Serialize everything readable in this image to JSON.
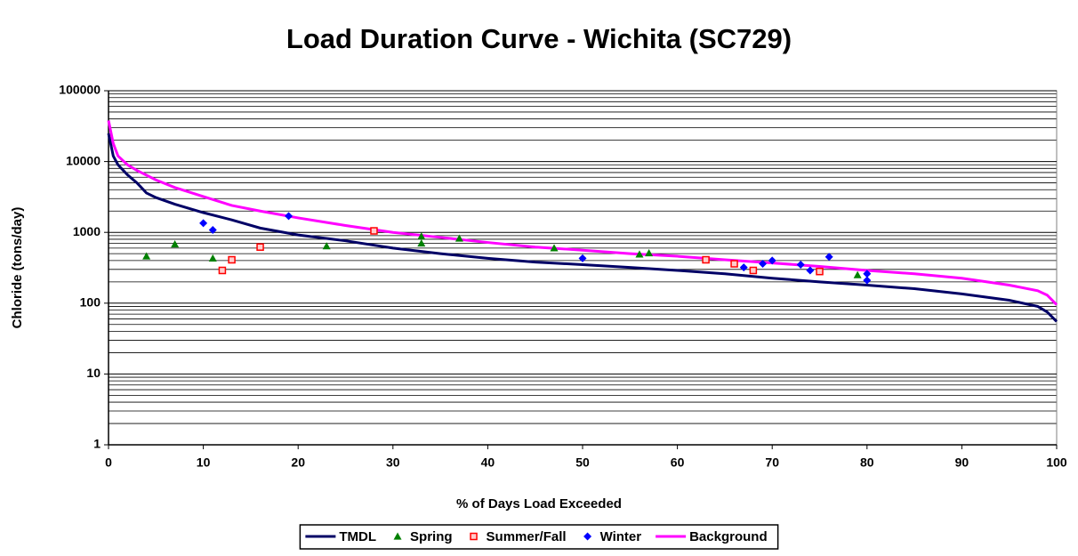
{
  "chart_data": {
    "type": "line",
    "title": "Load Duration Curve - Wichita (SC729)",
    "x_label": "% of Days Load Exceeded",
    "y_label": "Chloride (tons/day)",
    "xlim": [
      0,
      100
    ],
    "xticks": [
      0,
      10,
      20,
      30,
      40,
      50,
      60,
      70,
      80,
      90,
      100
    ],
    "ylim": [
      1,
      100000
    ],
    "yticks": [
      1,
      10,
      100,
      1000,
      10000,
      100000
    ],
    "y_scale": "log",
    "grid": true,
    "minor_grid": true,
    "legend": "bottom",
    "series": [
      {
        "name": "TMDL",
        "type": "line",
        "color": "#000066",
        "x": [
          0,
          0.5,
          1,
          2,
          3,
          4,
          5,
          7,
          10,
          13,
          16,
          20,
          25,
          30,
          35,
          40,
          45,
          50,
          55,
          60,
          65,
          70,
          75,
          80,
          85,
          90,
          95,
          98,
          99,
          100
        ],
        "values": [
          25000,
          12000,
          9000,
          6500,
          5000,
          3600,
          3100,
          2500,
          1900,
          1500,
          1150,
          920,
          760,
          600,
          500,
          430,
          380,
          350,
          320,
          290,
          260,
          225,
          200,
          180,
          160,
          135,
          110,
          90,
          75,
          55
        ]
      },
      {
        "name": "Spring",
        "type": "scatter",
        "marker": "triangle",
        "color": "#008000",
        "x": [
          4,
          7,
          11,
          23,
          33,
          33,
          37,
          47,
          56,
          57,
          79
        ],
        "values": [
          460,
          680,
          430,
          640,
          880,
          700,
          820,
          600,
          490,
          510,
          250
        ]
      },
      {
        "name": "Summer/Fall",
        "type": "scatter",
        "marker": "square",
        "color": "#ff0000",
        "x": [
          12,
          13,
          16,
          28,
          63,
          66,
          68,
          75
        ],
        "values": [
          290,
          410,
          620,
          1050,
          410,
          360,
          290,
          280
        ]
      },
      {
        "name": "Winter",
        "type": "scatter",
        "marker": "diamond",
        "color": "#0000ff",
        "x": [
          10,
          11,
          19,
          50,
          67,
          69,
          70,
          73,
          74,
          76,
          80,
          80
        ],
        "values": [
          1350,
          1080,
          1700,
          430,
          320,
          360,
          400,
          350,
          290,
          450,
          260,
          210
        ]
      },
      {
        "name": "Background",
        "type": "line",
        "color": "#ff00ff",
        "x": [
          0,
          0.5,
          1,
          2,
          3,
          5,
          7,
          10,
          13,
          16,
          20,
          25,
          30,
          35,
          40,
          45,
          50,
          55,
          60,
          65,
          70,
          75,
          80,
          85,
          90,
          95,
          98,
          99,
          100
        ],
        "values": [
          38000,
          18000,
          12000,
          9000,
          7500,
          5500,
          4300,
          3200,
          2400,
          2000,
          1600,
          1250,
          1000,
          850,
          720,
          620,
          560,
          500,
          460,
          410,
          370,
          330,
          290,
          260,
          225,
          180,
          150,
          130,
          95
        ]
      }
    ]
  }
}
